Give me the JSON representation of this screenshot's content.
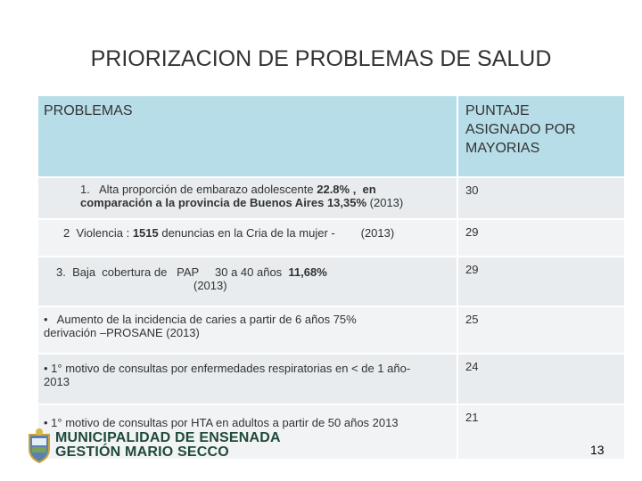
{
  "title": "PRIORIZACION DE PROBLEMAS DE SALUD",
  "table": {
    "header": [
      "PROBLEMAS",
      [
        "PUNTAJE",
        "ASIGNADO POR",
        "MAYORIAS"
      ]
    ],
    "rows": [
      {
        "problem": [
          [
            {
              "text": "1.   Alta proporción de embarazo adolescente ",
              "bold": false
            },
            {
              "text": "22.8%",
              "bold": true
            },
            {
              "text": " ,  en",
              "bold": true
            }
          ],
          [
            {
              "text": "comparación a la provincia de Buenos Aires 13,35%",
              "bold": true
            },
            {
              "text": " (2013)",
              "bold": false
            }
          ]
        ],
        "score": "30"
      },
      {
        "problem": [
          [
            {
              "text": "2  Violencia : ",
              "bold": false
            },
            {
              "text": "1515",
              "bold": true
            },
            {
              "text": " denuncias en la Cria de la mujer -        (2013)",
              "bold": false
            }
          ]
        ],
        "score": "29"
      },
      {
        "problem": [
          [
            {
              "text": "3.  Baja  cobertura de   PAP     30 a 40 años  ",
              "bold": false
            },
            {
              "text": "11,68%",
              "bold": true
            }
          ],
          [
            {
              "text": "(2013)",
              "bold": false
            }
          ]
        ],
        "score": "29"
      },
      {
        "problem": [
          [
            {
              "text": "•   Aumento de la incidencia de caries a partir de 6 años 75%",
              "bold": false
            }
          ],
          [
            {
              "text": "derivación –PROSANE (2013)",
              "bold": false
            }
          ]
        ],
        "score": "25"
      },
      {
        "problem": [
          [
            {
              "text": "• 1° motivo de consultas por enfermedades respiratorias en < de 1 año-",
              "bold": false
            }
          ],
          [
            {
              "text": "2013",
              "bold": false
            }
          ]
        ],
        "score": "24"
      },
      {
        "problem": [
          [
            {
              "text": "• 1° motivo de consultas por HTA en adultos a partir de 50 años 2013",
              "bold": false
            }
          ]
        ],
        "score": "21"
      }
    ]
  },
  "logo": [
    "MUNICIPALIDAD DE ENSENADA",
    "GESTIÓN MARIO SECCO"
  ],
  "page_number": "13"
}
